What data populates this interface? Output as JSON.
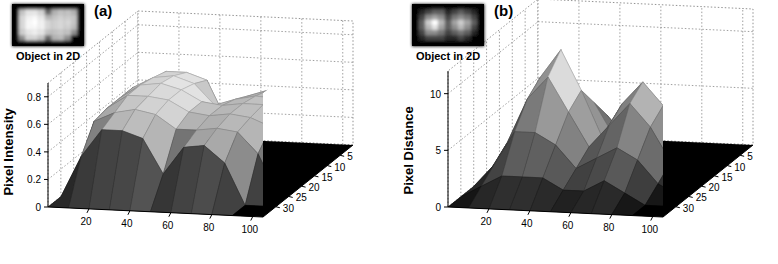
{
  "chart_data": [
    {
      "type": "surface",
      "title": "(a)",
      "inset_label": "Object in 2D",
      "zlabel": "Pixel Intensity",
      "x": [
        0,
        10,
        20,
        30,
        40,
        50,
        60,
        70,
        80,
        90,
        100
      ],
      "y": [
        0,
        5,
        10,
        15,
        20,
        25,
        30,
        35
      ],
      "z": [
        [
          0,
          0,
          0,
          0,
          0,
          0,
          0,
          0,
          0,
          0,
          0
        ],
        [
          0,
          0.45,
          0.55,
          0.55,
          0.5,
          0.2,
          0.4,
          0.45,
          0.45,
          0.4,
          0
        ],
        [
          0,
          0.5,
          0.58,
          0.6,
          0.55,
          0.4,
          0.45,
          0.48,
          0.47,
          0.45,
          0
        ],
        [
          0,
          0.5,
          0.6,
          0.62,
          0.58,
          0.5,
          0.48,
          0.5,
          0.5,
          0.45,
          0
        ],
        [
          0,
          0.5,
          0.6,
          0.6,
          0.58,
          0.5,
          0.48,
          0.5,
          0.48,
          0.42,
          0
        ],
        [
          0,
          0.48,
          0.55,
          0.58,
          0.55,
          0.45,
          0.45,
          0.47,
          0.45,
          0.3,
          0
        ],
        [
          0,
          0.3,
          0.5,
          0.5,
          0.45,
          0.2,
          0.4,
          0.42,
          0.3,
          0,
          0
        ],
        [
          0,
          0,
          0,
          0,
          0,
          0,
          0,
          0,
          0,
          0,
          0
        ]
      ],
      "xlim": [
        0,
        105
      ],
      "ylim": [
        0,
        35
      ],
      "zlim": [
        0,
        0.9
      ],
      "xticks": [
        20,
        40,
        60,
        80,
        100
      ],
      "yticks": [
        5,
        10,
        15,
        20,
        25,
        30
      ],
      "zticks": [
        0,
        0.2,
        0.4,
        0.6,
        0.8
      ],
      "grid": true
    },
    {
      "type": "surface",
      "title": "(b)",
      "inset_label": "Object in 2D",
      "zlabel": "Pixel Distance",
      "x": [
        0,
        10,
        20,
        30,
        40,
        50,
        60,
        70,
        80,
        90,
        100
      ],
      "y": [
        0,
        5,
        10,
        15,
        20,
        25,
        30,
        35
      ],
      "z": [
        [
          0,
          0,
          0,
          0,
          0,
          0,
          0,
          0,
          0,
          0,
          0
        ],
        [
          0,
          1,
          2,
          3,
          3,
          1,
          2,
          3,
          2,
          1,
          0
        ],
        [
          0,
          2,
          5,
          6,
          5,
          2,
          4,
          5,
          4,
          2,
          0
        ],
        [
          0,
          3,
          8,
          10.5,
          7,
          3,
          6,
          8,
          6,
          3,
          0
        ],
        [
          0,
          3,
          7,
          9,
          6,
          3,
          5,
          7,
          5,
          2,
          0
        ],
        [
          0,
          2,
          5,
          5,
          4,
          2,
          3,
          4,
          3,
          1,
          0
        ],
        [
          0,
          1,
          2,
          2,
          2,
          1,
          1,
          2,
          1,
          0,
          0
        ],
        [
          0,
          0,
          0,
          0,
          0,
          0,
          0,
          0,
          0,
          0,
          0
        ]
      ],
      "xlim": [
        0,
        105
      ],
      "ylim": [
        0,
        35
      ],
      "zlim": [
        0,
        12
      ],
      "xticks": [
        20,
        40,
        60,
        80,
        100
      ],
      "yticks": [
        5,
        10,
        15,
        20,
        25,
        30
      ],
      "zticks": [
        0,
        5,
        10
      ],
      "grid": true
    }
  ]
}
